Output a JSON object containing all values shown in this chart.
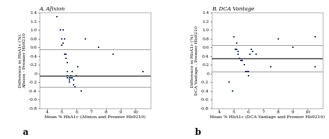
{
  "panel_a": {
    "title": "A. Afixion",
    "xlabel": "Mean % HbA1c (Afixion and Premier Hb9210)",
    "ylabel": "Difference in HbA1c (%)\nAfixion - Premier Hb9210",
    "label": "a",
    "mean_line": -0.05,
    "upper_loa": 0.55,
    "lower_loa": -0.3,
    "xlim": [
      3.5,
      11
    ],
    "ylim": [
      -0.8,
      1.4
    ],
    "ytick_vals": [
      -0.8,
      -0.6,
      -0.4,
      -0.2,
      0.0,
      0.2,
      0.4,
      0.6,
      0.8,
      1.0,
      1.2,
      1.4
    ],
    "ytick_labels": [
      "-0.8",
      "-0.6",
      "-0.4",
      "-0.2",
      "0",
      "0.2",
      "0.4",
      "0.6",
      "0.8",
      "1.0",
      "1.2",
      "1.4"
    ],
    "xtick_vals": [
      4,
      5,
      6,
      7,
      8,
      9,
      10
    ],
    "xtick_labels": [
      "4",
      "5",
      "6",
      "7",
      "8",
      "9",
      "10"
    ],
    "scatter_x": [
      4.7,
      4.9,
      5.0,
      5.0,
      5.1,
      5.1,
      5.1,
      5.2,
      5.2,
      5.2,
      5.2,
      5.3,
      5.3,
      5.3,
      5.3,
      5.3,
      5.3,
      5.3,
      5.4,
      5.4,
      5.4,
      5.4,
      5.4,
      5.4,
      5.4,
      5.4,
      5.5,
      5.5,
      5.5,
      5.5,
      5.5,
      5.5,
      5.5,
      5.5,
      5.5,
      5.6,
      5.6,
      5.6,
      5.6,
      5.7,
      5.7,
      5.7,
      5.8,
      5.8,
      5.8,
      5.9,
      5.9,
      6.0,
      6.1,
      6.3,
      6.6,
      7.5,
      8.5,
      10.5
    ],
    "scatter_y": [
      1.3,
      1.0,
      0.8,
      0.65,
      1.0,
      1.0,
      0.7,
      0.8,
      0.8,
      0.45,
      0.45,
      0.45,
      0.35,
      0.35,
      0.35,
      0.35,
      0.35,
      0.35,
      0.25,
      0.05,
      0.05,
      0.05,
      -0.05,
      -0.05,
      -0.05,
      -0.1,
      -0.1,
      -0.15,
      -0.15,
      -0.15,
      -0.2,
      -0.2,
      -0.2,
      -0.2,
      -0.2,
      -0.05,
      -0.05,
      -0.05,
      -0.1,
      0.05,
      0.05,
      -0.1,
      -0.15,
      -0.15,
      -0.25,
      -0.3,
      -0.3,
      -0.05,
      0.15,
      -0.4,
      0.8,
      0.6,
      0.45,
      0.05
    ]
  },
  "panel_b": {
    "title": "B. DCA Vantage",
    "xlabel": "Mean % HbA1c (DCA Vantage and Premier Hb9210)",
    "ylabel": "Difference in HbA1c (%)\nDCA Vantage - Premier Hb9210",
    "label": "b",
    "mean_line": 0.35,
    "upper_loa": 0.65,
    "lower_loa": 0.05,
    "xlim": [
      3.5,
      11
    ],
    "ylim": [
      -0.8,
      1.4
    ],
    "ytick_vals": [
      -0.8,
      -0.6,
      -0.4,
      -0.2,
      0.0,
      0.2,
      0.4,
      0.6,
      0.8,
      1.0,
      1.2,
      1.4
    ],
    "ytick_labels": [
      "-0.8",
      "-0.6",
      "-0.4",
      "-0.2",
      "0",
      "0.2",
      "0.4",
      "0.6",
      "0.8",
      "1.0",
      "1.2",
      "1.4"
    ],
    "xtick_vals": [
      4,
      5,
      6,
      7,
      8,
      9,
      10
    ],
    "xtick_labels": [
      "4",
      "5",
      "6",
      "7",
      "8",
      "9",
      "10"
    ],
    "scatter_x": [
      4.7,
      5.0,
      5.1,
      5.1,
      5.2,
      5.2,
      5.2,
      5.3,
      5.3,
      5.3,
      5.3,
      5.3,
      5.4,
      5.4,
      5.4,
      5.4,
      5.4,
      5.4,
      5.4,
      5.4,
      5.5,
      5.5,
      5.5,
      5.5,
      5.5,
      5.5,
      5.5,
      5.5,
      5.5,
      5.5,
      5.6,
      5.6,
      5.6,
      5.6,
      5.7,
      5.7,
      5.7,
      5.7,
      5.8,
      5.8,
      5.9,
      5.9,
      6.0,
      6.0,
      6.1,
      6.2,
      6.3,
      6.5,
      7.5,
      8.0,
      9.0,
      10.5,
      10.5,
      4.9
    ],
    "scatter_y": [
      -0.2,
      0.85,
      0.55,
      0.55,
      0.55,
      0.7,
      0.7,
      0.45,
      0.45,
      0.5,
      0.5,
      0.5,
      0.35,
      0.35,
      0.35,
      0.35,
      0.35,
      0.35,
      0.35,
      0.35,
      0.3,
      0.3,
      0.3,
      0.3,
      0.3,
      0.3,
      0.3,
      0.3,
      0.3,
      0.3,
      0.3,
      0.3,
      0.3,
      0.3,
      0.2,
      0.2,
      0.2,
      0.2,
      0.05,
      0.05,
      0.05,
      0.05,
      -0.05,
      0.05,
      0.45,
      0.55,
      0.5,
      0.45,
      0.15,
      0.8,
      0.6,
      0.15,
      0.85,
      -0.4
    ]
  },
  "dot_color": "#1a3560",
  "mean_line_color": "#2a2a2a",
  "loa_color": "#888888",
  "bg_color": "#ffffff",
  "font_family": "serif",
  "font_size": 4.5,
  "title_fontsize": 5.5,
  "label_fontsize": 9
}
